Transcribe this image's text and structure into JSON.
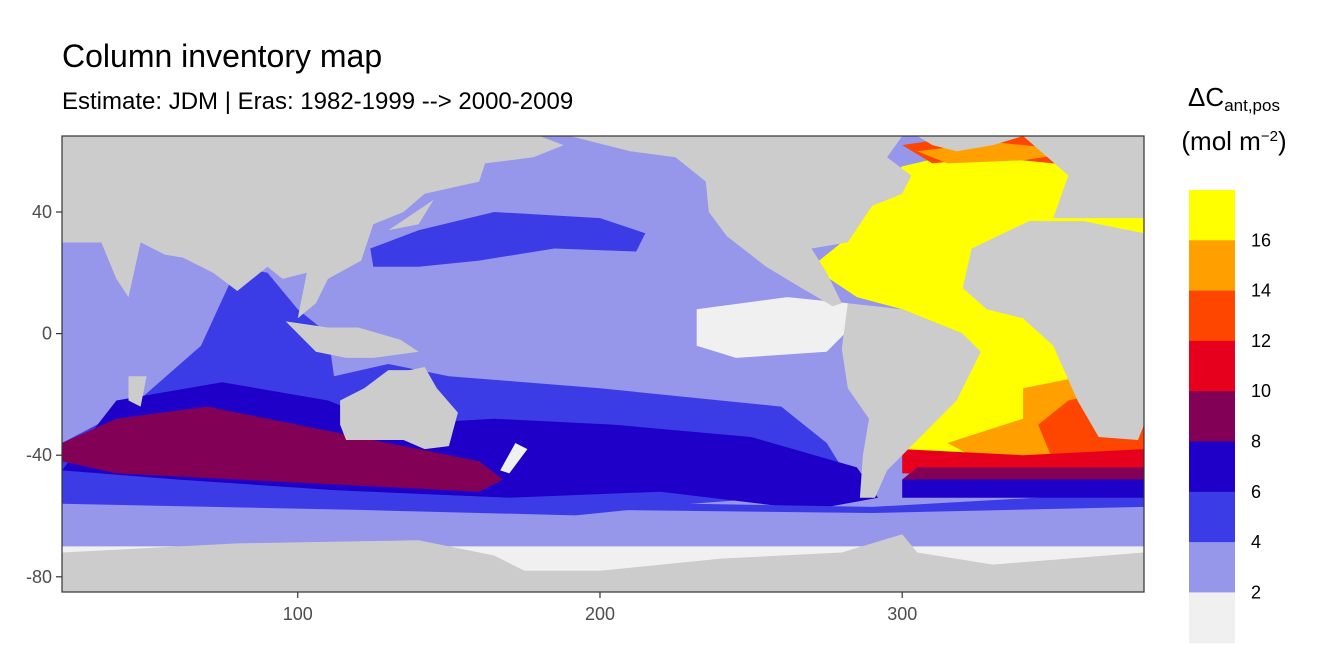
{
  "chart_data": {
    "type": "heatmap",
    "title": "Column inventory map",
    "subtitle": "Estimate: JDM  | Eras: 1982-1999 --> 2000-2009",
    "legend_title_main": "ΔC",
    "legend_title_sub": "ant,pos",
    "legend_unit_prefix": "(mol m",
    "legend_unit_sup": "−2",
    "legend_unit_suffix": ")",
    "xlim": [
      22,
      380
    ],
    "ylim": [
      -85,
      65
    ],
    "x_ticks": [
      100,
      200,
      300
    ],
    "x_tick_labels": [
      "100",
      "200",
      "300"
    ],
    "y_ticks": [
      40,
      0,
      -40,
      -80
    ],
    "y_tick_labels": [
      "40",
      "0",
      "-40",
      "-80"
    ],
    "grid": false,
    "legend_position": "right",
    "land_color": "#cccccc",
    "color_bins": [
      {
        "range": "<2",
        "color": "#f0f0f0"
      },
      {
        "range": "2-4",
        "color": "#9696eb"
      },
      {
        "range": "4-6",
        "color": "#3c3ce6"
      },
      {
        "range": "6-8",
        "color": "#1e00c8"
      },
      {
        "range": "8-10",
        "color": "#820055"
      },
      {
        "range": "10-12",
        "color": "#e6001e"
      },
      {
        "range": "12-14",
        "color": "#ff4600"
      },
      {
        "range": "14-16",
        "color": "#ffa000"
      },
      {
        "range": ">16",
        "color": "#ffff00"
      }
    ],
    "legend_breaks": [
      "16",
      "14",
      "12",
      "10",
      "8",
      "6",
      "4",
      "2"
    ]
  }
}
